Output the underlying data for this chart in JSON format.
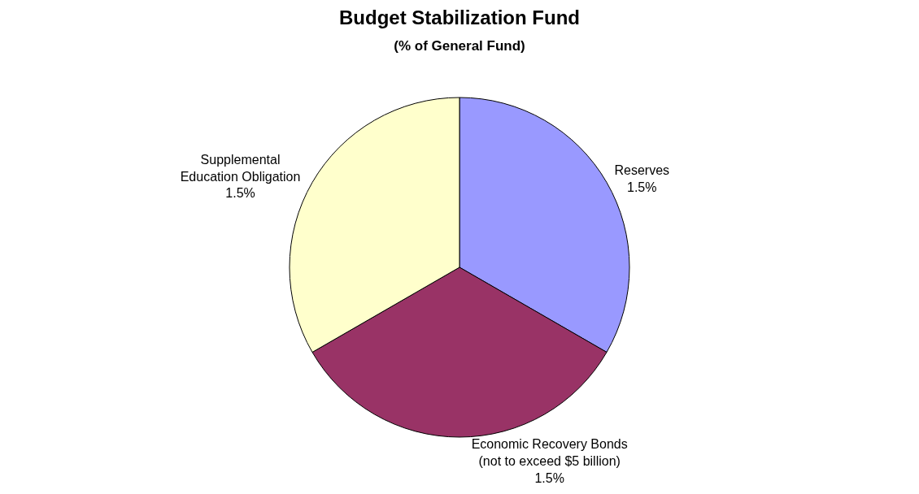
{
  "chart_data": {
    "type": "pie",
    "title": "Budget Stabilization Fund",
    "subtitle": "(% of General Fund)",
    "categories": [
      "Reserves",
      "Economic Recovery Bonds\n(not to exceed $5 billion)",
      "Supplemental\nEducation Obligation"
    ],
    "values": [
      1.5,
      1.5,
      1.5
    ],
    "value_labels": [
      "1.5%",
      "1.5%",
      "1.5%"
    ],
    "colors": [
      "#9999ff",
      "#993366",
      "#ffffcc"
    ]
  }
}
